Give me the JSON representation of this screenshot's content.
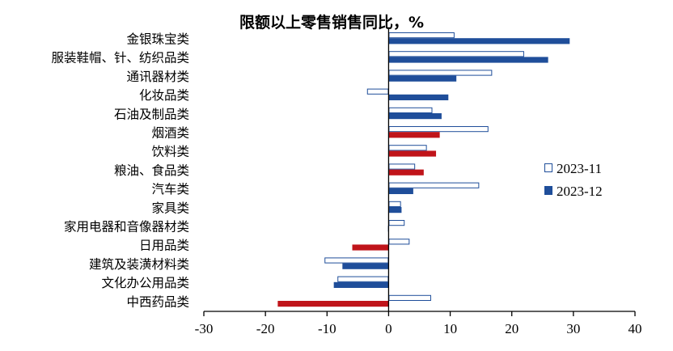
{
  "chart_data": {
    "type": "bar",
    "orientation": "horizontal",
    "title": "限额以上零售销售同比，%",
    "categories": [
      "金银珠宝类",
      "服装鞋帽、针、纺织品类",
      "通讯器材类",
      "化妆品类",
      "石油及制品类",
      "烟酒类",
      "饮料类",
      "粮油、食品类",
      "汽车类",
      "家具类",
      "家用电器和音像器材类",
      "日用品类",
      "建筑及装潢材料类",
      "文化办公用品类",
      "中西药品类"
    ],
    "series": [
      {
        "name": "2023-11",
        "style": "outline",
        "color": "#1f4e9a",
        "values": [
          10.7,
          22.0,
          16.8,
          -3.5,
          7.1,
          16.2,
          6.2,
          4.3,
          14.7,
          2.0,
          2.6,
          3.4,
          -10.4,
          -8.3,
          6.9
        ]
      },
      {
        "name": "2023-12",
        "style": "filled",
        "color": "#1f4e9a",
        "highlight_color": "#c0141a",
        "highlight_categories": [
          "烟酒类",
          "饮料类",
          "粮油、食品类",
          "日用品类",
          "中西药品类"
        ],
        "values": [
          29.4,
          25.9,
          11.0,
          9.7,
          8.6,
          8.3,
          7.7,
          5.7,
          4.0,
          2.1,
          -0.1,
          -5.9,
          -7.5,
          -8.9,
          -18.0
        ]
      }
    ],
    "xlim": [
      -30,
      40
    ],
    "xticks": [
      -30,
      -20,
      -10,
      0,
      10,
      20,
      30,
      40
    ],
    "legend": "right",
    "grid": false
  }
}
